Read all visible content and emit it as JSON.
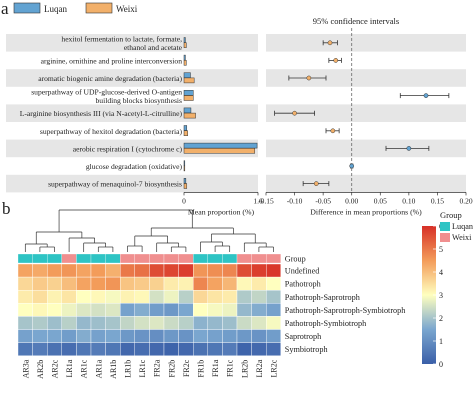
{
  "panel_a": {
    "label": "a",
    "legend": {
      "items": [
        {
          "name": "Luqan",
          "color": "#62a3d2"
        },
        {
          "name": "Weixi",
          "color": "#f2b06a"
        }
      ]
    },
    "ci_title": "95% confidence intervals"
  },
  "panel_b": {
    "label": "b",
    "group_legend_title": "Group",
    "group_legend": [
      {
        "name": "Luqan",
        "color": "#2ec4c4"
      },
      {
        "name": "Weixi",
        "color": "#f08f8f"
      }
    ]
  },
  "chart_data": [
    {
      "type": "bar",
      "orientation": "horizontal",
      "xlabel": "Mean proportion (%)",
      "xticks": [
        "0",
        "1.6"
      ],
      "xlim": [
        0,
        1.6
      ],
      "categories": [
        "hexitol fermentation to lactate, formate,|ethanol and acetate",
        "arginine, ornithine and proline interconversion",
        "aromatic biogenic amine degradation (bacteria)",
        "superpathway of UDP-glucose-derived O-antigen|building blocks biosynthesis",
        "L-arginine biosynthesis III (via N-acetyl-L-citrulline)",
        "superpathway of hexitol degradation (bacteria)",
        "aerobic respiration I (cytochrome c)",
        "glucose degradation (oxidative)",
        "superpathway of menaquinol-7 biosynthesis"
      ],
      "series": [
        {
          "name": "Luqan",
          "values": [
            0.03,
            0.03,
            0.14,
            0.2,
            0.15,
            0.06,
            1.58,
            0.005,
            0.04
          ]
        },
        {
          "name": "Weixi",
          "values": [
            0.05,
            0.05,
            0.22,
            0.2,
            0.25,
            0.08,
            1.53,
            0.005,
            0.06
          ]
        }
      ]
    },
    {
      "type": "scatter",
      "xlabel": "Difference in mean proportions (%)",
      "xticks": [
        "-0.15",
        "-0.10",
        "-0.05",
        "0.00",
        "0.05",
        "0.10",
        "0.15",
        "0.20"
      ],
      "xlim": [
        -0.15,
        0.2
      ],
      "categories": [
        "hexitol fermentation to lactate, formate, ethanol and acetate",
        "arginine, ornithine and proline interconversion",
        "aromatic biogenic amine degradation (bacteria)",
        "superpathway of UDP-glucose-derived O-antigen building blocks biosynthesis",
        "L-arginine biosynthesis III (via N-acetyl-L-citrulline)",
        "superpathway of hexitol degradation (bacteria)",
        "aerobic respiration I (cytochrome c)",
        "glucose degradation (oxidative)",
        "superpathway of menaquinol-7 biosynthesis"
      ],
      "estimate": [
        -0.038,
        -0.028,
        -0.075,
        0.13,
        -0.1,
        -0.033,
        0.1,
        0.0,
        -0.062
      ],
      "ci_low": [
        -0.05,
        -0.04,
        -0.11,
        0.085,
        -0.135,
        -0.045,
        0.06,
        -0.002,
        -0.085
      ],
      "ci_high": [
        -0.025,
        -0.018,
        -0.045,
        0.17,
        -0.065,
        -0.022,
        0.135,
        0.002,
        -0.04
      ],
      "reference_line": 0
    },
    {
      "type": "heatmap",
      "columns": [
        "AR3a",
        "AR2b",
        "AR2c",
        "LR1a",
        "AR1c",
        "AR1a",
        "AR1b",
        "LR1b",
        "LR1c",
        "FR2a",
        "FR2b",
        "FR2c",
        "FR1b",
        "FR1a",
        "FR1c",
        "LR2b",
        "LR2a",
        "LR2c"
      ],
      "group_row_label": "Group",
      "groups": [
        "Luqan",
        "Luqan",
        "Luqan",
        "Weixi",
        "Luqan",
        "Luqan",
        "Luqan",
        "Weixi",
        "Weixi",
        "Weixi",
        "Weixi",
        "Weixi",
        "Luqan",
        "Luqan",
        "Luqan",
        "Weixi",
        "Weixi",
        "Weixi"
      ],
      "rows": [
        "Undefined",
        "Pathotroph",
        "Pathotroph-Saprotroph",
        "Pathotroph-Saprotroph-Symbiotroph",
        "Pathotroph-Symbiotroph",
        "Saprotroph",
        "Symbiotroph"
      ],
      "values": [
        [
          4.4,
          4.3,
          4.5,
          4.6,
          4.4,
          4.5,
          4.2,
          5.0,
          5.1,
          5.6,
          5.7,
          5.8,
          4.6,
          4.7,
          4.8,
          5.6,
          5.8,
          5.9
        ],
        [
          3.6,
          3.8,
          3.7,
          4.0,
          4.4,
          4.5,
          4.6,
          3.9,
          3.8,
          3.7,
          3.3,
          3.2,
          4.8,
          4.4,
          4.1,
          3.1,
          3.3,
          3.0
        ],
        [
          3.3,
          3.5,
          3.2,
          3.4,
          3.0,
          3.1,
          2.9,
          3.2,
          3.1,
          2.5,
          2.8,
          2.2,
          3.6,
          3.4,
          3.3,
          2.1,
          2.3,
          2.0
        ],
        [
          3.0,
          3.1,
          3.0,
          2.8,
          2.6,
          2.5,
          2.6,
          1.4,
          1.6,
          1.3,
          1.2,
          1.5,
          3.0,
          2.9,
          2.8,
          1.8,
          1.6,
          1.4
        ],
        [
          2.0,
          2.1,
          1.9,
          2.2,
          1.8,
          1.9,
          2.0,
          2.3,
          2.5,
          2.6,
          2.4,
          2.2,
          1.7,
          1.8,
          1.9,
          2.4,
          2.6,
          2.9
        ],
        [
          1.4,
          1.5,
          1.5,
          1.3,
          1.6,
          1.4,
          1.5,
          1.2,
          1.1,
          1.0,
          1.2,
          1.1,
          1.5,
          1.4,
          1.3,
          1.2,
          1.1,
          1.3
        ],
        [
          0.5,
          0.6,
          0.4,
          0.3,
          0.5,
          0.6,
          0.5,
          0.2,
          0.3,
          0.2,
          0.1,
          0.2,
          0.4,
          0.5,
          0.6,
          0.1,
          0.2,
          0.3
        ]
      ],
      "colorbar": {
        "ticks": [
          "0",
          "1",
          "2",
          "3",
          "4",
          "5",
          "6"
        ],
        "range": [
          0,
          6
        ],
        "colors": [
          "#3a5fa8",
          "#7aa6cf",
          "#ffffbf",
          "#f39c5a",
          "#d73027"
        ]
      }
    }
  ]
}
